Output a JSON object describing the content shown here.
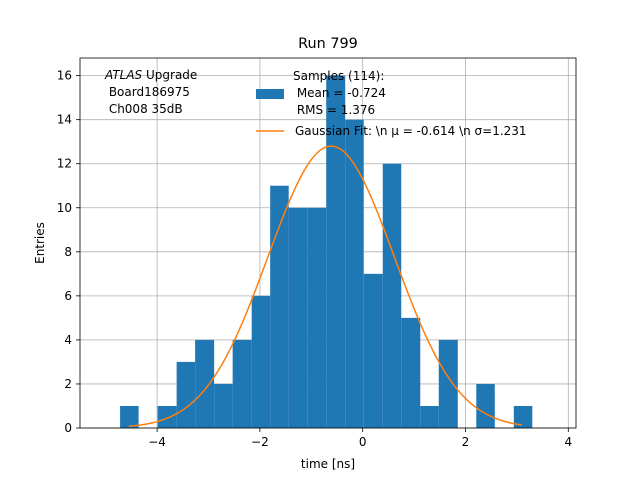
{
  "chart_data": {
    "type": "bar",
    "title": "Run 799",
    "xlabel": "time [ns]",
    "ylabel": "Entries",
    "xlim": [
      -5.5,
      4.15
    ],
    "ylim": [
      0,
      16.8
    ],
    "xticks": [
      -4,
      -2,
      0,
      2,
      4
    ],
    "xtick_labels": [
      "−4",
      "−2",
      "0",
      "2",
      "4"
    ],
    "yticks": [
      0,
      2,
      4,
      6,
      8,
      10,
      12,
      14,
      16
    ],
    "ytick_labels": [
      "0",
      "2",
      "4",
      "6",
      "8",
      "10",
      "12",
      "14",
      "16"
    ],
    "grid": true,
    "legend_position": "top-right",
    "annotation": {
      "lines": [
        "ATLAS Upgrade",
        " Board186975",
        " Ch008 35dB"
      ],
      "italic_word": "ATLAS",
      "rest_of_first_line": " Upgrade"
    },
    "histogram": {
      "color": "#1f77b4",
      "bin_edges": [
        -4.72,
        -4.36,
        -3.99,
        -3.62,
        -3.26,
        -2.89,
        -2.53,
        -2.16,
        -1.8,
        -1.44,
        -1.07,
        -0.71,
        -0.34,
        0.02,
        0.39,
        0.75,
        1.12,
        1.48,
        1.85,
        2.21,
        2.57,
        2.94,
        3.3
      ],
      "counts": [
        1,
        0,
        1,
        3,
        4,
        2,
        4,
        6,
        11,
        10,
        10,
        16,
        14,
        7,
        12,
        5,
        1,
        4,
        0,
        2,
        0,
        1
      ],
      "legend_lines": [
        "Samples (114):",
        " Mean = -0.724",
        " RMS = 1.376"
      ]
    },
    "gaussian_fit": {
      "color": "#ff7f0e",
      "mu": -0.614,
      "sigma": 1.231,
      "amplitude": 12.8,
      "x_range": [
        -4.55,
        3.1
      ],
      "legend_label": "Gaussian Fit: \\n μ = -0.614 \\n σ=1.231"
    }
  }
}
